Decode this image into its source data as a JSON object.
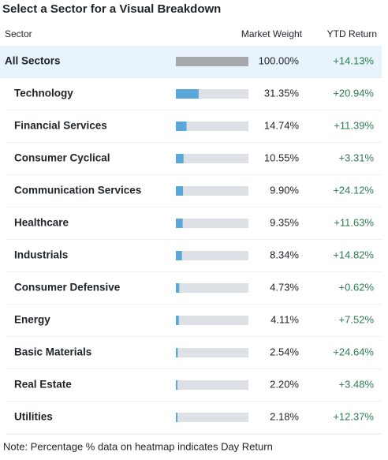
{
  "title": "Select a Sector for a Visual Breakdown",
  "header": {
    "sector": "Sector",
    "weight": "Market Weight",
    "ytd": "YTD Return"
  },
  "sectors": {
    "names": [
      "All Sectors",
      "Technology",
      "Financial Services",
      "Consumer Cyclical",
      "Communication Services",
      "Healthcare",
      "Industrials",
      "Consumer Defensive",
      "Energy",
      "Basic Materials",
      "Real Estate",
      "Utilities"
    ],
    "values": [
      100.0,
      31.35,
      14.74,
      10.55,
      9.9,
      9.35,
      8.34,
      4.73,
      4.11,
      2.54,
      2.2,
      2.18
    ],
    "value_labels": [
      "100.00%",
      "31.35%",
      "14.74%",
      "10.55%",
      "9.90%",
      "9.35%",
      "8.34%",
      "4.73%",
      "4.11%",
      "2.54%",
      "2.20%",
      "2.18%"
    ],
    "ytd": [
      "+14.13%",
      "+20.94%",
      "+11.39%",
      "+3.31%",
      "+24.12%",
      "+11.63%",
      "+14.82%",
      "+0.62%",
      "+7.52%",
      "+24.64%",
      "+3.48%",
      "+12.37%"
    ]
  },
  "note": "Note: Percentage % data on heatmap indicates Day Return"
}
